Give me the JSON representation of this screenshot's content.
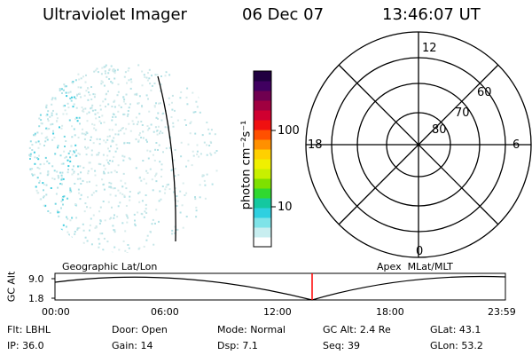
{
  "header": {
    "instrument": "Ultraviolet Imager",
    "date": "06 Dec 07",
    "time": "13:46:07 UT"
  },
  "colorbar": {
    "unit_label": "photon cm⁻²s⁻¹",
    "ticks": [
      {
        "label": "100",
        "value": 100
      },
      {
        "label": "10",
        "value": 10
      }
    ],
    "colors": [
      "#ffffff",
      "#c8eef0",
      "#7fe3e8",
      "#2fd0e0",
      "#14c8a0",
      "#30d830",
      "#7ee000",
      "#c8f000",
      "#f0f000",
      "#ffd000",
      "#ff9000",
      "#ff5000",
      "#f01010",
      "#d00030",
      "#a00040",
      "#700050",
      "#400060",
      "#200040"
    ]
  },
  "polar_grid": {
    "mlt_labels": [
      {
        "label": "12",
        "side": "top"
      },
      {
        "label": "18",
        "side": "left"
      },
      {
        "label": "6",
        "side": "right"
      },
      {
        "label": "0",
        "side": "bottom"
      }
    ],
    "lat_labels": [
      "60",
      "70",
      "80"
    ]
  },
  "timeline": {
    "left_title": "Geographic Lat/Lon",
    "right_title": "Apex  MLat/MLT",
    "y_axis_label": "GC Alt",
    "y_ticks": [
      "9.0",
      "1.8"
    ],
    "x_ticks": [
      "00:00",
      "06:00",
      "12:00",
      "18:00",
      "23:59"
    ],
    "marker_time_hours": 13.77,
    "marker_color": "#ff0000"
  },
  "status": {
    "row1": [
      {
        "key": "Flt:",
        "value": "LBHL"
      },
      {
        "key": "Door:",
        "value": "Open"
      },
      {
        "key": "Mode:",
        "value": "Normal"
      },
      {
        "key": "GC Alt:",
        "value": "2.4 Re"
      },
      {
        "key": "GLat:",
        "value": "43.1"
      }
    ],
    "row2": [
      {
        "key": "IP:",
        "value": "36.0"
      },
      {
        "key": "Gain:",
        "value": "14"
      },
      {
        "key": "Dsp:",
        "value": "7.1"
      },
      {
        "key": "Seq:",
        "value": "39"
      },
      {
        "key": "GLon:",
        "value": "53.2"
      }
    ]
  }
}
